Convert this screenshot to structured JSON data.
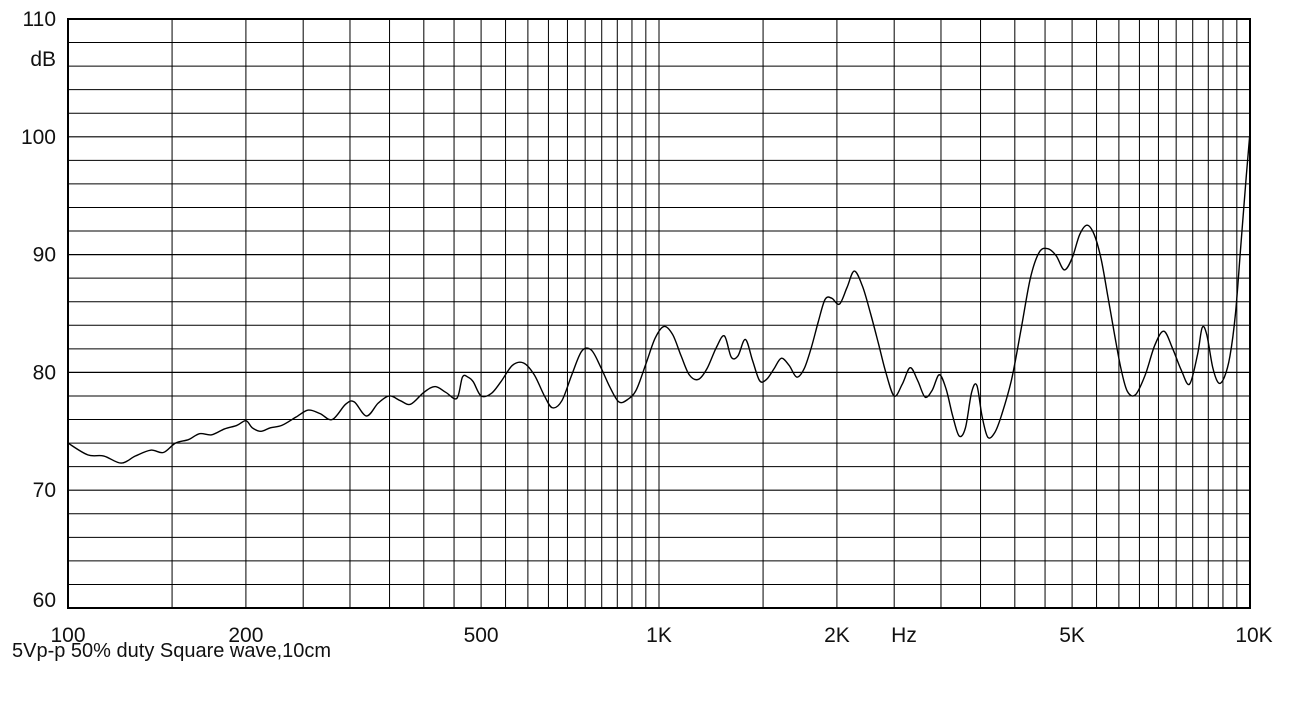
{
  "caption": "5Vp-p 50% duty Square wave,10cm",
  "chart_data": {
    "type": "line",
    "x_scale": "log",
    "xlim": [
      100,
      10000
    ],
    "ylim": [
      60,
      110
    ],
    "y_unit_label": "dB",
    "x_unit_label": "Hz",
    "y_ticks": [
      {
        "value": 110,
        "label": "110"
      },
      {
        "value": 100,
        "label": "100"
      },
      {
        "value": 90,
        "label": "90"
      },
      {
        "value": 80,
        "label": "80"
      },
      {
        "value": 70,
        "label": "70"
      },
      {
        "value": 60,
        "label": "60"
      }
    ],
    "x_ticks": [
      {
        "value": 100,
        "label": "100"
      },
      {
        "value": 200,
        "label": "200"
      },
      {
        "value": 500,
        "label": "500"
      },
      {
        "value": 1000,
        "label": "1K"
      },
      {
        "value": 2000,
        "label": "2K"
      },
      {
        "value": 5000,
        "label": "5K"
      },
      {
        "value": 10000,
        "label": "10K"
      }
    ],
    "grid": true,
    "line_color": "#000000",
    "series": [
      {
        "points": [
          [
            100,
            74.0
          ],
          [
            108,
            73.0
          ],
          [
            115,
            72.9
          ],
          [
            123,
            72.3
          ],
          [
            130,
            72.9
          ],
          [
            138,
            73.4
          ],
          [
            145,
            73.2
          ],
          [
            152,
            74.0
          ],
          [
            160,
            74.3
          ],
          [
            167,
            74.8
          ],
          [
            175,
            74.7
          ],
          [
            184,
            75.2
          ],
          [
            193,
            75.5
          ],
          [
            200,
            75.9
          ],
          [
            205,
            75.3
          ],
          [
            212,
            75.0
          ],
          [
            220,
            75.3
          ],
          [
            230,
            75.5
          ],
          [
            243,
            76.2
          ],
          [
            255,
            76.8
          ],
          [
            267,
            76.5
          ],
          [
            280,
            76.0
          ],
          [
            295,
            77.3
          ],
          [
            305,
            77.5
          ],
          [
            320,
            76.3
          ],
          [
            335,
            77.4
          ],
          [
            350,
            78.0
          ],
          [
            365,
            77.6
          ],
          [
            380,
            77.3
          ],
          [
            400,
            78.3
          ],
          [
            418,
            78.8
          ],
          [
            436,
            78.3
          ],
          [
            455,
            77.8
          ],
          [
            465,
            79.6
          ],
          [
            475,
            79.6
          ],
          [
            485,
            79.2
          ],
          [
            500,
            78.0
          ],
          [
            520,
            78.2
          ],
          [
            540,
            79.2
          ],
          [
            565,
            80.6
          ],
          [
            590,
            80.8
          ],
          [
            615,
            79.8
          ],
          [
            640,
            78.0
          ],
          [
            660,
            77.0
          ],
          [
            685,
            77.6
          ],
          [
            712,
            79.8
          ],
          [
            740,
            81.8
          ],
          [
            768,
            81.9
          ],
          [
            796,
            80.5
          ],
          [
            825,
            78.8
          ],
          [
            855,
            77.5
          ],
          [
            885,
            77.7
          ],
          [
            915,
            78.5
          ],
          [
            950,
            80.7
          ],
          [
            985,
            82.9
          ],
          [
            1020,
            83.9
          ],
          [
            1055,
            83.2
          ],
          [
            1090,
            81.4
          ],
          [
            1125,
            79.8
          ],
          [
            1165,
            79.4
          ],
          [
            1205,
            80.3
          ],
          [
            1250,
            82.1
          ],
          [
            1290,
            83.1
          ],
          [
            1325,
            81.3
          ],
          [
            1360,
            81.4
          ],
          [
            1400,
            82.8
          ],
          [
            1440,
            81.0
          ],
          [
            1480,
            79.3
          ],
          [
            1520,
            79.4
          ],
          [
            1565,
            80.3
          ],
          [
            1610,
            81.2
          ],
          [
            1660,
            80.6
          ],
          [
            1710,
            79.6
          ],
          [
            1760,
            80.3
          ],
          [
            1810,
            82.1
          ],
          [
            1860,
            84.3
          ],
          [
            1910,
            86.2
          ],
          [
            1960,
            86.3
          ],
          [
            2020,
            85.8
          ],
          [
            2080,
            87.2
          ],
          [
            2140,
            88.6
          ],
          [
            2210,
            87.3
          ],
          [
            2280,
            85.0
          ],
          [
            2350,
            82.5
          ],
          [
            2420,
            80.0
          ],
          [
            2500,
            78.0
          ],
          [
            2580,
            79.0
          ],
          [
            2660,
            80.4
          ],
          [
            2740,
            79.3
          ],
          [
            2820,
            77.9
          ],
          [
            2900,
            78.5
          ],
          [
            2980,
            79.8
          ],
          [
            3060,
            78.6
          ],
          [
            3140,
            76.3
          ],
          [
            3220,
            74.6
          ],
          [
            3300,
            75.3
          ],
          [
            3380,
            78.3
          ],
          [
            3450,
            78.9
          ],
          [
            3520,
            76.3
          ],
          [
            3600,
            74.5
          ],
          [
            3700,
            74.9
          ],
          [
            3800,
            76.4
          ],
          [
            3950,
            79.4
          ],
          [
            4100,
            83.7
          ],
          [
            4250,
            88.0
          ],
          [
            4400,
            90.2
          ],
          [
            4550,
            90.5
          ],
          [
            4700,
            89.9
          ],
          [
            4850,
            88.7
          ],
          [
            5000,
            89.7
          ],
          [
            5150,
            91.7
          ],
          [
            5300,
            92.5
          ],
          [
            5450,
            91.7
          ],
          [
            5600,
            89.6
          ],
          [
            5750,
            86.4
          ],
          [
            5900,
            83.2
          ],
          [
            6050,
            80.3
          ],
          [
            6200,
            78.4
          ],
          [
            6400,
            78.1
          ],
          [
            6650,
            79.8
          ],
          [
            6900,
            82.3
          ],
          [
            7150,
            83.5
          ],
          [
            7400,
            82.0
          ],
          [
            7650,
            80.2
          ],
          [
            7900,
            79.0
          ],
          [
            8150,
            81.5
          ],
          [
            8300,
            83.8
          ],
          [
            8450,
            83.2
          ],
          [
            8650,
            80.4
          ],
          [
            8850,
            79.1
          ],
          [
            9050,
            79.6
          ],
          [
            9250,
            81.4
          ],
          [
            9450,
            85.0
          ],
          [
            9650,
            90.8
          ],
          [
            9850,
            96.5
          ],
          [
            10000,
            100.4
          ]
        ]
      }
    ]
  }
}
